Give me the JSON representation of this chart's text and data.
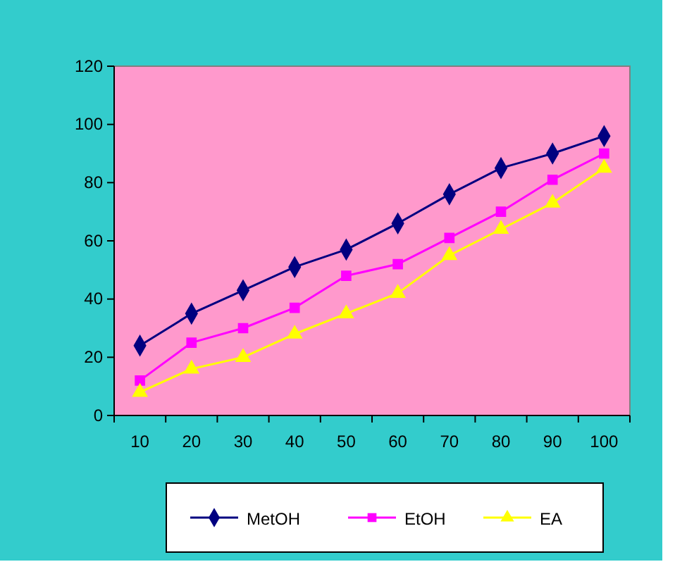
{
  "chart_data": {
    "type": "line",
    "categories": [
      "10",
      "20",
      "30",
      "40",
      "50",
      "60",
      "70",
      "80",
      "90",
      "100"
    ],
    "series": [
      {
        "name": "MetOH",
        "color": "#000080",
        "marker": "diamond",
        "values": [
          24,
          35,
          43,
          51,
          57,
          66,
          76,
          85,
          90,
          96
        ]
      },
      {
        "name": "EtOH",
        "color": "#ff00ff",
        "marker": "square",
        "values": [
          12,
          25,
          30,
          37,
          48,
          52,
          61,
          70,
          81,
          90
        ]
      },
      {
        "name": "EA",
        "color": "#ffff00",
        "marker": "triangle",
        "values": [
          8,
          16,
          20,
          28,
          35,
          42,
          55,
          64,
          73,
          85
        ]
      }
    ],
    "ylim": [
      0,
      120
    ],
    "yticks": [
      0,
      20,
      40,
      60,
      80,
      100,
      120
    ],
    "grid": false,
    "legend": "bottom"
  }
}
